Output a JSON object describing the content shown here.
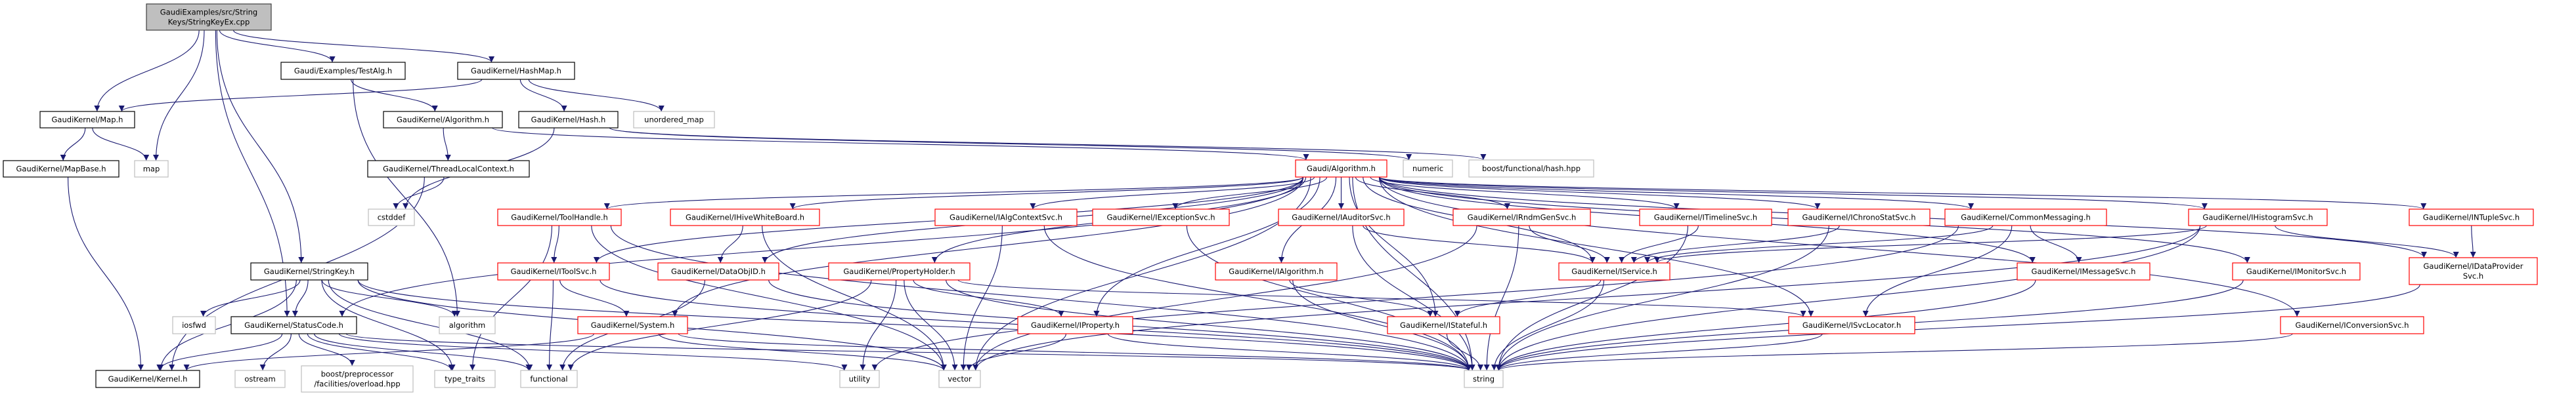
{
  "colors": {
    "edge": "#191970",
    "root_fill": "#bfbfbf",
    "root_border": "#404040",
    "documented_border": "#000000",
    "truncated_border": "#ff0000",
    "system_border": "#bfbfbf",
    "background": "#ffffff"
  },
  "nodes": [
    {
      "lines": [
        "GaudiExamples/src/String",
        "Keys/StringKeyEx.cpp"
      ],
      "kind": "root"
    },
    {
      "lines": [
        "Gaudi/Examples/TestAlg.h"
      ],
      "kind": "documented"
    },
    {
      "lines": [
        "GaudiKernel/HashMap.h"
      ],
      "kind": "documented"
    },
    {
      "lines": [
        "GaudiKernel/Map.h"
      ],
      "kind": "documented"
    },
    {
      "lines": [
        "GaudiKernel/Algorithm.h"
      ],
      "kind": "documented"
    },
    {
      "lines": [
        "GaudiKernel/Hash.h"
      ],
      "kind": "documented"
    },
    {
      "lines": [
        "unordered_map"
      ],
      "kind": "system"
    },
    {
      "lines": [
        "GaudiKernel/MapBase.h"
      ],
      "kind": "documented"
    },
    {
      "lines": [
        "map"
      ],
      "kind": "system"
    },
    {
      "lines": [
        "GaudiKernel/ThreadLocalContext.h"
      ],
      "kind": "documented"
    },
    {
      "lines": [
        "Gaudi/Algorithm.h"
      ],
      "kind": "truncated"
    },
    {
      "lines": [
        "numeric"
      ],
      "kind": "system"
    },
    {
      "lines": [
        "boost/functional/hash.hpp"
      ],
      "kind": "system"
    },
    {
      "lines": [
        "cstddef"
      ],
      "kind": "system"
    },
    {
      "lines": [
        "GaudiKernel/ToolHandle.h"
      ],
      "kind": "truncated"
    },
    {
      "lines": [
        "GaudiKernel/IHiveWhiteBoard.h"
      ],
      "kind": "truncated"
    },
    {
      "lines": [
        "GaudiKernel/IAlgContextSvc.h"
      ],
      "kind": "truncated"
    },
    {
      "lines": [
        "GaudiKernel/IExceptionSvc.h"
      ],
      "kind": "truncated"
    },
    {
      "lines": [
        "GaudiKernel/IAuditorSvc.h"
      ],
      "kind": "truncated"
    },
    {
      "lines": [
        "GaudiKernel/IRndmGenSvc.h"
      ],
      "kind": "truncated"
    },
    {
      "lines": [
        "GaudiKernel/ITimelineSvc.h"
      ],
      "kind": "truncated"
    },
    {
      "lines": [
        "GaudiKernel/IChronoStatSvc.h"
      ],
      "kind": "truncated"
    },
    {
      "lines": [
        "GaudiKernel/CommonMessaging.h"
      ],
      "kind": "truncated"
    },
    {
      "lines": [
        "GaudiKernel/IHistogramSvc.h"
      ],
      "kind": "truncated"
    },
    {
      "lines": [
        "GaudiKernel/INTupleSvc.h"
      ],
      "kind": "truncated"
    },
    {
      "lines": [
        "GaudiKernel/StringKey.h"
      ],
      "kind": "documented"
    },
    {
      "lines": [
        "GaudiKernel/IToolSvc.h"
      ],
      "kind": "truncated"
    },
    {
      "lines": [
        "GaudiKernel/DataObjID.h"
      ],
      "kind": "truncated"
    },
    {
      "lines": [
        "GaudiKernel/PropertyHolder.h"
      ],
      "kind": "truncated"
    },
    {
      "lines": [
        "GaudiKernel/IAlgorithm.h"
      ],
      "kind": "truncated"
    },
    {
      "lines": [
        "GaudiKernel/IService.h"
      ],
      "kind": "truncated"
    },
    {
      "lines": [
        "GaudiKernel/IMessageSvc.h"
      ],
      "kind": "truncated"
    },
    {
      "lines": [
        "GaudiKernel/IMonitorSvc.h"
      ],
      "kind": "truncated"
    },
    {
      "lines": [
        "GaudiKernel/IDataProvider",
        "Svc.h"
      ],
      "kind": "truncated"
    },
    {
      "lines": [
        "iosfwd"
      ],
      "kind": "system"
    },
    {
      "lines": [
        "GaudiKernel/StatusCode.h"
      ],
      "kind": "documented"
    },
    {
      "lines": [
        "algorithm"
      ],
      "kind": "system"
    },
    {
      "lines": [
        "GaudiKernel/System.h"
      ],
      "kind": "truncated"
    },
    {
      "lines": [
        "GaudiKernel/IProperty.h"
      ],
      "kind": "truncated"
    },
    {
      "lines": [
        "GaudiKernel/IStateful.h"
      ],
      "kind": "truncated"
    },
    {
      "lines": [
        "GaudiKernel/ISvcLocator.h"
      ],
      "kind": "truncated"
    },
    {
      "lines": [
        "GaudiKernel/IConversionSvc.h"
      ],
      "kind": "truncated"
    },
    {
      "lines": [
        "GaudiKernel/Kernel.h"
      ],
      "kind": "documented"
    },
    {
      "lines": [
        "ostream"
      ],
      "kind": "system"
    },
    {
      "lines": [
        "boost/preprocessor",
        "/facilities/overload.hpp"
      ],
      "kind": "system"
    },
    {
      "lines": [
        "type_traits"
      ],
      "kind": "system"
    },
    {
      "lines": [
        "functional"
      ],
      "kind": "system"
    },
    {
      "lines": [
        "utility"
      ],
      "kind": "system"
    },
    {
      "lines": [
        "vector"
      ],
      "kind": "system"
    },
    {
      "lines": [
        "string"
      ],
      "kind": "system"
    }
  ],
  "edges": [
    [
      0,
      3
    ],
    [
      0,
      8
    ],
    [
      0,
      25
    ],
    [
      0,
      35
    ],
    [
      0,
      1
    ],
    [
      0,
      2
    ],
    [
      1,
      4
    ],
    [
      1,
      36
    ],
    [
      2,
      3
    ],
    [
      2,
      5
    ],
    [
      2,
      6
    ],
    [
      3,
      7
    ],
    [
      3,
      8
    ],
    [
      7,
      42
    ],
    [
      4,
      9
    ],
    [
      4,
      10
    ],
    [
      5,
      13
    ],
    [
      5,
      11
    ],
    [
      5,
      12
    ],
    [
      9,
      13
    ],
    [
      9,
      42
    ],
    [
      10,
      14
    ],
    [
      10,
      15
    ],
    [
      10,
      16
    ],
    [
      10,
      17
    ],
    [
      10,
      18
    ],
    [
      10,
      19
    ],
    [
      10,
      20
    ],
    [
      10,
      21
    ],
    [
      10,
      22
    ],
    [
      10,
      23
    ],
    [
      10,
      24
    ],
    [
      10,
      26
    ],
    [
      10,
      27
    ],
    [
      10,
      28
    ],
    [
      10,
      29
    ],
    [
      10,
      30
    ],
    [
      10,
      31
    ],
    [
      10,
      32
    ],
    [
      10,
      33
    ],
    [
      10,
      37
    ],
    [
      10,
      38
    ],
    [
      10,
      39
    ],
    [
      10,
      40
    ],
    [
      10,
      41
    ],
    [
      10,
      35
    ],
    [
      10,
      49
    ],
    [
      10,
      48
    ],
    [
      14,
      26
    ],
    [
      14,
      45
    ],
    [
      14,
      48
    ],
    [
      14,
      49
    ],
    [
      15,
      27
    ],
    [
      15,
      48
    ],
    [
      16,
      48
    ],
    [
      16,
      49
    ],
    [
      17,
      49
    ],
    [
      18,
      30
    ],
    [
      18,
      49
    ],
    [
      19,
      30
    ],
    [
      19,
      49
    ],
    [
      19,
      48
    ],
    [
      20,
      30
    ],
    [
      20,
      49
    ],
    [
      21,
      30
    ],
    [
      21,
      49
    ],
    [
      22,
      31
    ],
    [
      22,
      40
    ],
    [
      22,
      30
    ],
    [
      22,
      47
    ],
    [
      23,
      30
    ],
    [
      23,
      33
    ],
    [
      23,
      49
    ],
    [
      23,
      48
    ],
    [
      24,
      33
    ],
    [
      26,
      37
    ],
    [
      26,
      46
    ],
    [
      26,
      49
    ],
    [
      27,
      49
    ],
    [
      27,
      46
    ],
    [
      28,
      38
    ],
    [
      28,
      47
    ],
    [
      28,
      48
    ],
    [
      28,
      46
    ],
    [
      28,
      49
    ],
    [
      28,
      40
    ],
    [
      29,
      39
    ],
    [
      29,
      49
    ],
    [
      30,
      39
    ],
    [
      30,
      49
    ],
    [
      31,
      49
    ],
    [
      32,
      49
    ],
    [
      33,
      49
    ],
    [
      25,
      42
    ],
    [
      25,
      34
    ],
    [
      25,
      35
    ],
    [
      25,
      36
    ],
    [
      25,
      45
    ],
    [
      25,
      46
    ],
    [
      25,
      49
    ],
    [
      25,
      48
    ],
    [
      35,
      42
    ],
    [
      35,
      43
    ],
    [
      35,
      44
    ],
    [
      35,
      45
    ],
    [
      35,
      46
    ],
    [
      35,
      47
    ],
    [
      35,
      49
    ],
    [
      37,
      42
    ],
    [
      37,
      49
    ],
    [
      37,
      48
    ],
    [
      38,
      48
    ],
    [
      38,
      49
    ],
    [
      39,
      49
    ],
    [
      40,
      49
    ],
    [
      41,
      49
    ]
  ]
}
